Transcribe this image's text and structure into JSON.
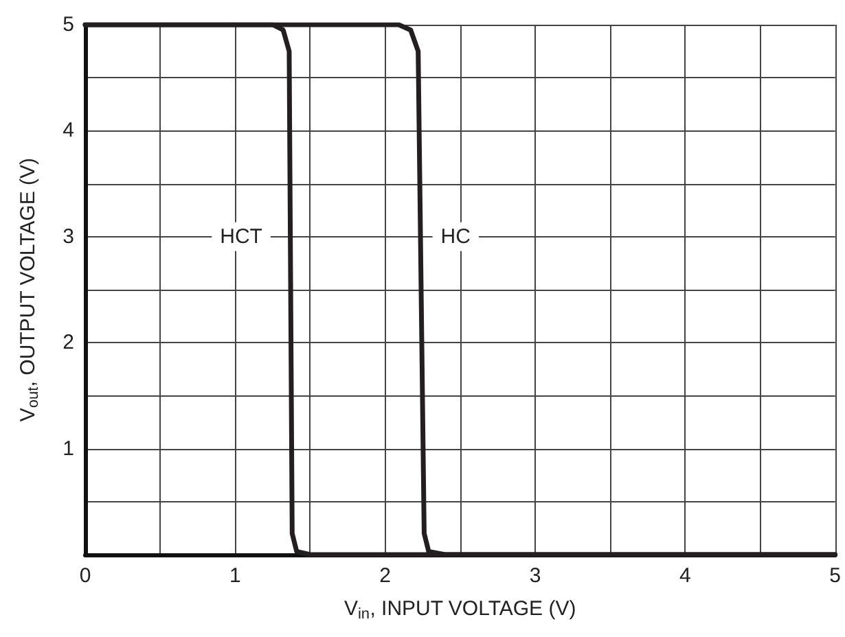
{
  "chart_data": {
    "type": "line",
    "xlabel": "V$_{in}$, INPUT VOLTAGE (V)",
    "ylabel": "V$_{out}$, OUTPUT VOLTAGE (V)",
    "series": [
      {
        "color": "#231f20",
        "x": [
          0,
          1.25,
          1.32,
          1.36,
          1.38,
          1.41,
          1.5,
          5
        ],
        "values": [
          5,
          5,
          4.95,
          4.75,
          0.2,
          0.03,
          0,
          0
        ]
      },
      {
        "color": "#231f20",
        "x": [
          0,
          2.09,
          2.17,
          2.22,
          2.26,
          2.29,
          2.4,
          5
        ],
        "values": [
          5,
          5,
          4.95,
          4.75,
          0.2,
          0.03,
          0,
          0
        ]
      }
    ],
    "annotations": [
      {
        "text": "HCT",
        "x": 1.04,
        "y": 3
      },
      {
        "text": "HC",
        "x": 2.47,
        "y": 3
      }
    ],
    "xlim": [
      0,
      5
    ],
    "xticks": [
      0,
      {
        "value": 0.5,
        "label": null
      },
      1,
      {
        "value": 1.5,
        "label": null
      },
      2,
      {
        "value": 2.5,
        "label": null
      },
      3,
      {
        "value": 3.5,
        "label": null
      },
      4,
      {
        "value": 4.5,
        "label": null
      },
      5
    ],
    "ylim": [
      0,
      5
    ],
    "yticks": [
      {
        "value": 0,
        "label": null
      },
      {
        "value": 0.5,
        "label": null
      },
      1,
      {
        "value": 1.5,
        "label": null
      },
      2,
      {
        "value": 2.5,
        "label": null
      },
      3,
      {
        "value": 3.5,
        "label": null
      },
      4,
      {
        "value": 4.5,
        "label": null
      },
      5
    ],
    "grid": true,
    "marker": "none",
    "line_style": "solid"
  }
}
